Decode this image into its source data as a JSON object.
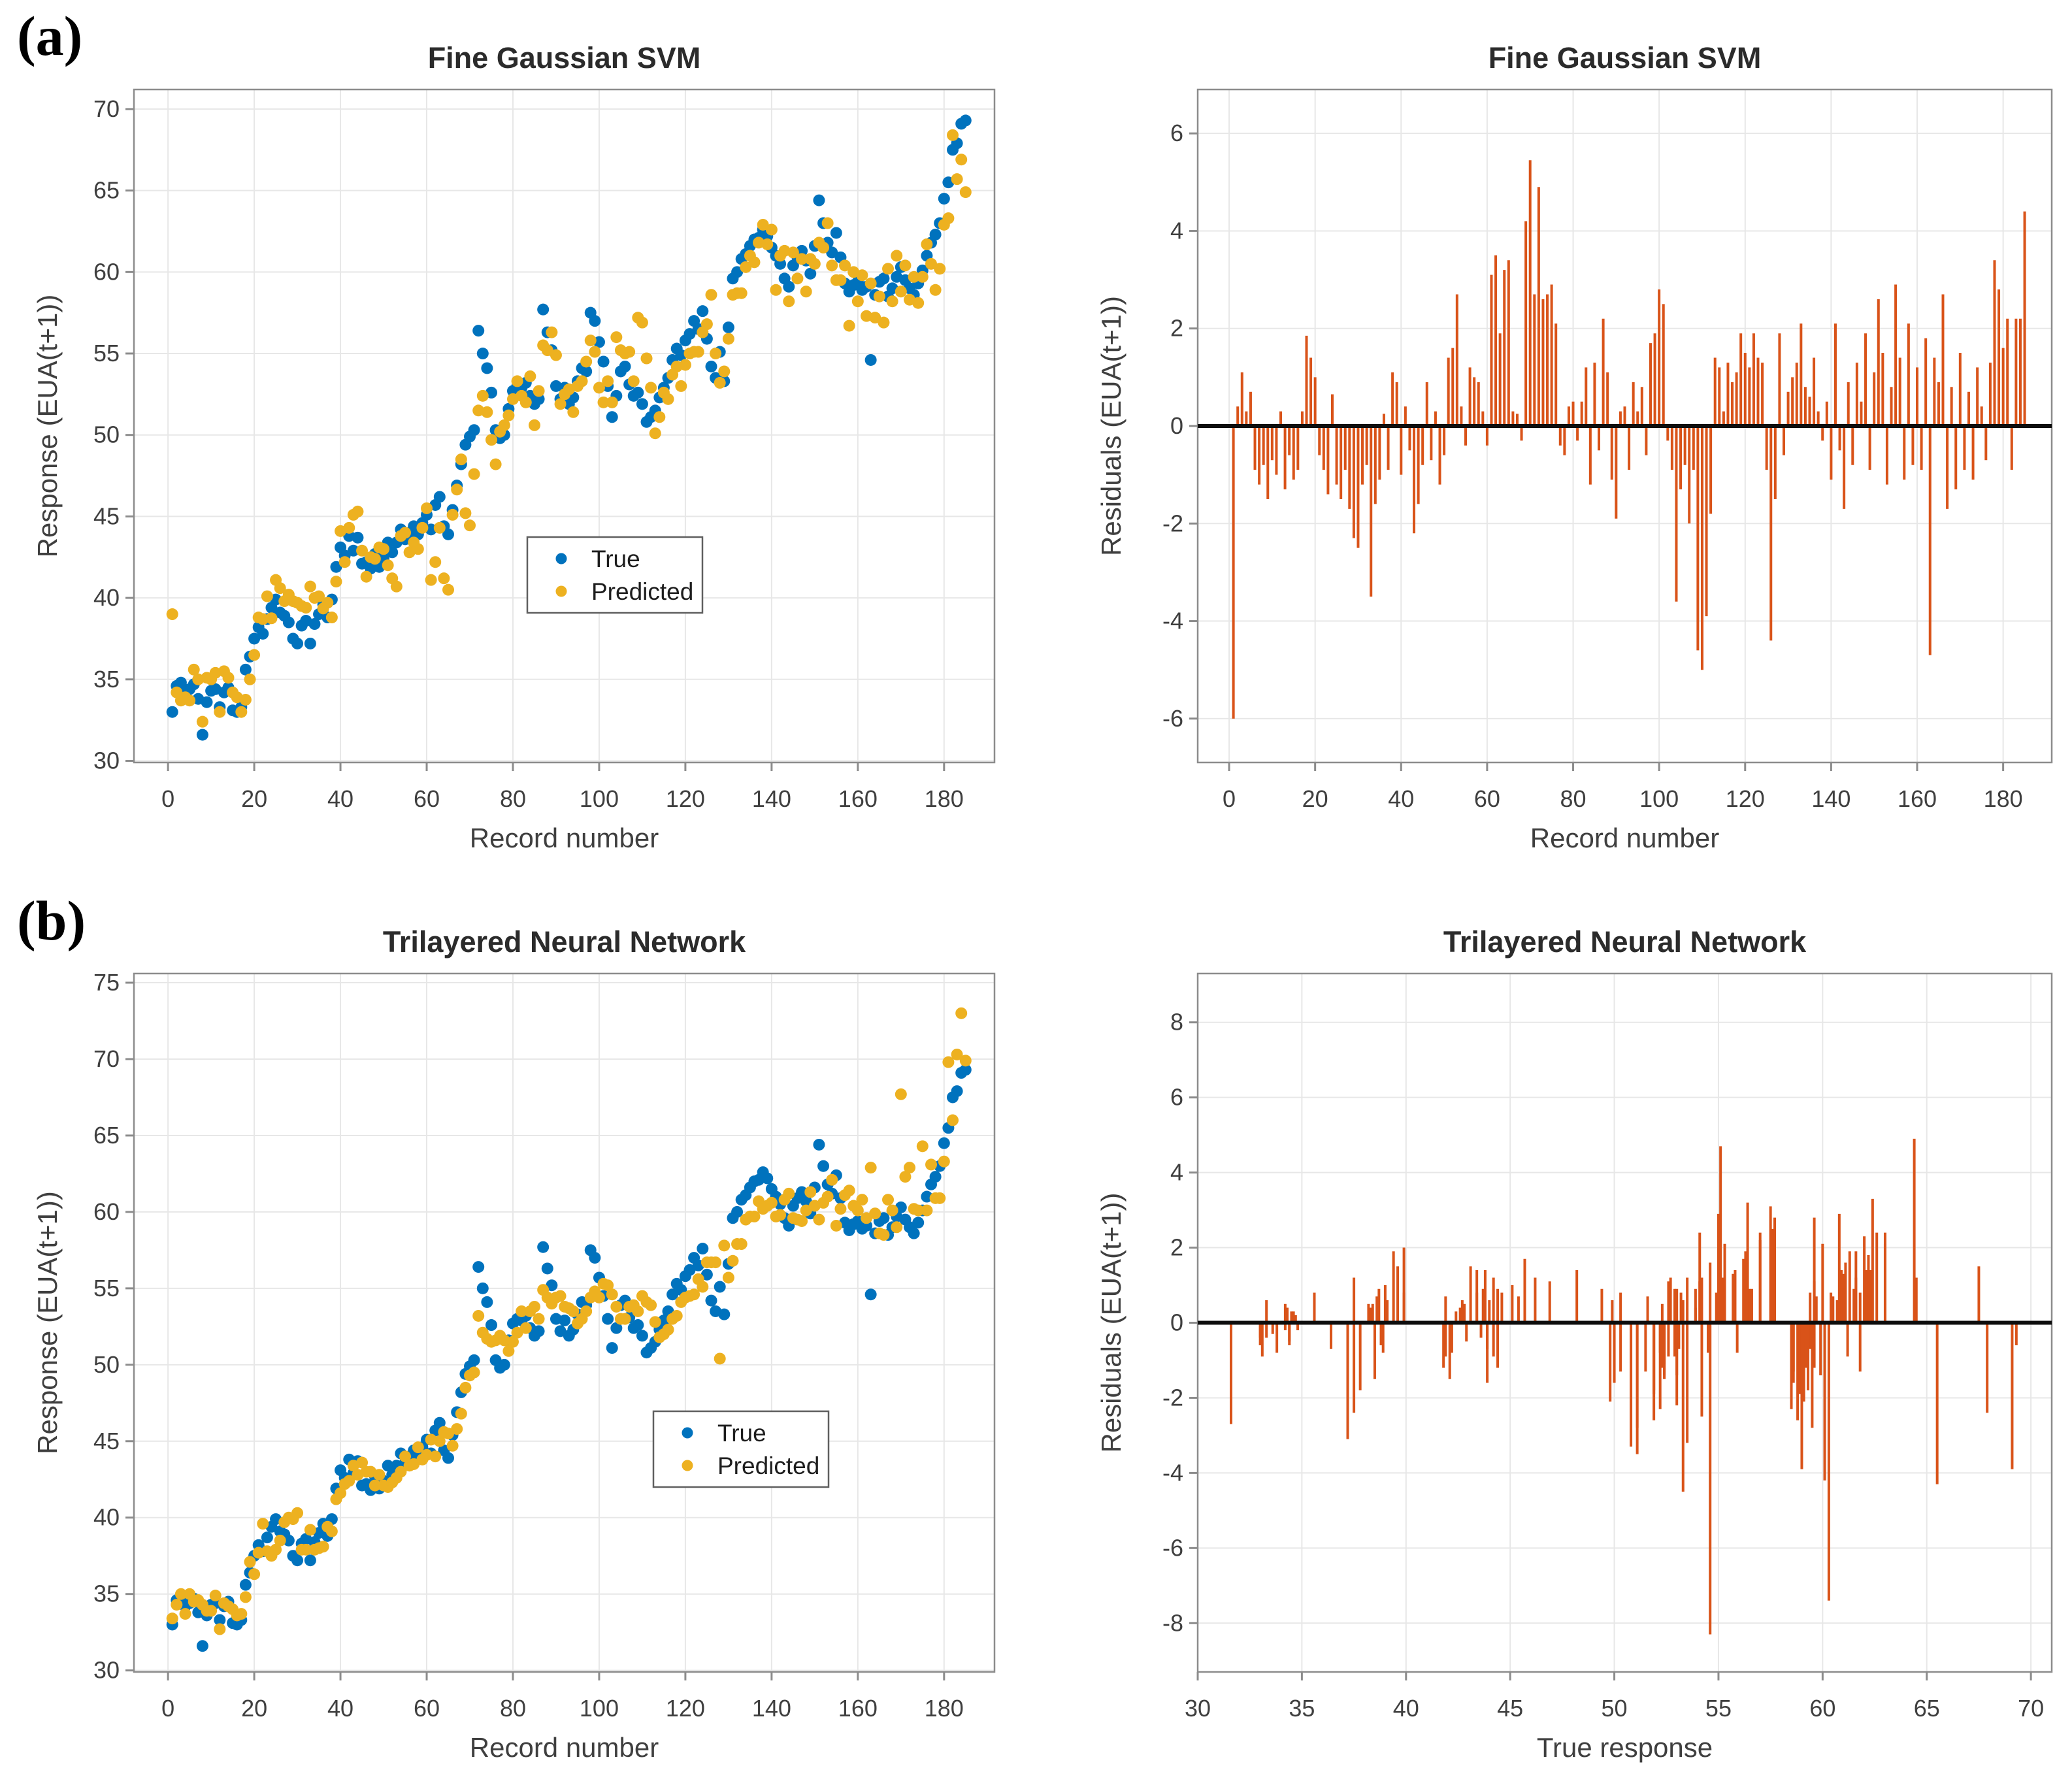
{
  "panel_labels": {
    "a": "(a)",
    "b": "(b)"
  },
  "legend": {
    "true_label": "True",
    "predicted_label": "Predicted"
  },
  "colors": {
    "true": "#0072BD",
    "predicted": "#EDB120",
    "residual": "#D95319",
    "baseline": "#0d0d0d",
    "grid": "#E7E7E7",
    "axis": "#8C8C8C",
    "tick_text": "#3F3F3F",
    "title_text": "#2B2B2B",
    "background": "#FFFFFF"
  },
  "chart_data": {
    "shared": {
      "record_start": 1,
      "n_records": 185,
      "note": "x = record number (1..185); predicted = true_response - residual",
      "true_response": [
        33.0,
        34.6,
        34.8,
        34.2,
        34.4,
        34.7,
        33.8,
        31.6,
        33.6,
        34.3,
        34.4,
        33.3,
        34.2,
        34.5,
        33.1,
        33.0,
        33.3,
        35.6,
        36.4,
        37.5,
        38.2,
        37.8,
        38.7,
        39.4,
        39.9,
        39.1,
        38.9,
        38.5,
        37.5,
        37.2,
        38.3,
        38.6,
        37.2,
        38.4,
        39.0,
        39.6,
        38.8,
        39.9,
        41.9,
        43.1,
        42.6,
        43.8,
        42.9,
        43.7,
        42.1,
        42.2,
        41.8,
        42.7,
        41.9,
        42.4,
        43.4,
        42.8,
        43.4,
        44.2,
        43.6,
        44.0,
        44.4,
        43.9,
        44.6,
        45.1,
        44.2,
        45.7,
        46.2,
        44.4,
        43.9,
        45.4,
        46.9,
        48.2,
        49.4,
        49.9,
        50.3,
        56.4,
        55.0,
        54.1,
        52.6,
        50.3,
        49.8,
        50.0,
        51.6,
        52.7,
        53.0,
        52.9,
        53.2,
        52.4,
        51.9,
        52.2,
        57.7,
        56.3,
        55.2,
        53.0,
        52.2,
        52.9,
        51.9,
        52.3,
        53.3,
        54.1,
        53.9,
        57.5,
        57.0,
        55.7,
        54.5,
        53.0,
        51.1,
        52.4,
        53.9,
        54.2,
        53.1,
        52.4,
        52.6,
        51.9,
        50.8,
        51.1,
        51.5,
        52.3,
        52.9,
        53.5,
        54.6,
        55.3,
        54.9,
        55.8,
        56.2,
        57.0,
        56.5,
        57.6,
        55.9,
        54.2,
        53.5,
        55.1,
        53.3,
        56.6,
        59.6,
        60.0,
        60.8,
        61.1,
        61.6,
        62.0,
        62.1,
        62.6,
        62.2,
        61.5,
        61.0,
        60.5,
        59.6,
        59.1,
        60.4,
        60.9,
        61.3,
        60.7,
        59.9,
        61.6,
        64.4,
        63.0,
        61.8,
        61.2,
        62.4,
        60.9,
        59.3,
        58.8,
        59.2,
        59.4,
        58.9,
        59.1,
        54.6,
        58.6,
        59.4,
        59.6,
        58.5,
        59.0,
        59.7,
        60.3,
        59.5,
        59.0,
        58.6,
        59.3,
        60.1,
        61.0,
        61.8,
        62.3,
        63.0,
        64.5,
        65.5,
        67.5,
        67.9,
        69.1,
        69.3
      ],
      "residuals_svm": [
        -6.0,
        0.4,
        1.1,
        0.3,
        0.7,
        -0.9,
        -1.2,
        -0.8,
        -1.5,
        -0.7,
        -1.0,
        0.3,
        -1.3,
        -0.6,
        -1.1,
        -0.9,
        0.3,
        1.85,
        1.4,
        1.0,
        -0.6,
        -0.9,
        -1.4,
        0.65,
        -1.2,
        -1.5,
        -0.9,
        -1.7,
        -2.3,
        -2.5,
        -1.2,
        -0.8,
        -3.5,
        -1.6,
        -1.1,
        0.25,
        -0.9,
        1.1,
        0.9,
        -1.0,
        0.4,
        -0.5,
        -2.2,
        -1.6,
        -0.8,
        0.9,
        -0.7,
        0.3,
        -1.2,
        -0.6,
        1.4,
        1.6,
        2.7,
        0.4,
        -0.4,
        1.2,
        1.0,
        0.9,
        0.3,
        -0.4,
        3.1,
        3.5,
        1.9,
        3.2,
        3.4,
        0.3,
        0.25,
        -0.3,
        4.2,
        5.45,
        2.7,
        4.9,
        2.6,
        2.7,
        2.9,
        2.1,
        -0.4,
        -0.6,
        0.4,
        0.5,
        -0.3,
        0.5,
        1.2,
        -1.2,
        1.3,
        -0.5,
        2.2,
        1.1,
        -1.1,
        -1.9,
        0.3,
        0.4,
        -0.9,
        0.9,
        0.3,
        0.8,
        -0.6,
        1.7,
        1.9,
        2.8,
        2.5,
        -0.3,
        -0.9,
        -3.6,
        -1.3,
        -0.8,
        -2.0,
        -0.9,
        -4.6,
        -5.0,
        -3.9,
        -1.8,
        1.4,
        1.2,
        0.3,
        1.3,
        0.9,
        1.1,
        1.9,
        1.5,
        1.2,
        1.9,
        1.4,
        1.3,
        -0.9,
        -4.4,
        -1.5,
        1.9,
        -0.6,
        0.7,
        1.0,
        1.3,
        2.1,
        0.8,
        0.6,
        1.4,
        0.3,
        -0.3,
        0.5,
        -1.1,
        2.1,
        -0.5,
        -1.7,
        0.9,
        -0.8,
        1.3,
        0.5,
        1.9,
        -0.9,
        1.1,
        2.6,
        1.5,
        -1.2,
        0.8,
        2.9,
        1.4,
        -1.1,
        2.1,
        -0.8,
        1.2,
        -0.9,
        1.8,
        -4.7,
        1.4,
        0.9,
        2.7,
        -1.7,
        0.8,
        -1.3,
        1.5,
        -0.9,
        0.7,
        -1.1,
        1.2,
        0.4,
        -0.7,
        1.3,
        3.4,
        2.8,
        1.6,
        2.2,
        -0.9,
        2.2,
        2.2,
        4.4
      ],
      "residuals_nn": [
        -0.4,
        0.3,
        -0.2,
        0.5,
        -0.6,
        0.2,
        -0.8,
        -2.7,
        -0.3,
        0.4,
        -0.5,
        0.6,
        -0.2,
        0.3,
        -0.9,
        -0.6,
        -0.4,
        0.8,
        -0.7,
        1.2,
        0.5,
        -1.8,
        0.9,
        1.9,
        2.0,
        0.6,
        -0.8,
        -1.5,
        -2.4,
        -3.1,
        0.4,
        0.7,
        -2.0,
        0.5,
        1.0,
        1.5,
        -0.6,
        0.8,
        0.7,
        1.5,
        0.4,
        1.4,
        -0.5,
        0.9,
        -1.5,
        -0.8,
        -1.2,
        0.6,
        -0.9,
        0.3,
        1.4,
        0.5,
        0.8,
        1.2,
        -0.4,
        0.6,
        0.9,
        -0.7,
        0.8,
        1.0,
        -0.9,
        1.7,
        1.2,
        -1.2,
        -1.6,
        0.7,
        1.1,
        1.4,
        0.9,
        0.6,
        0.8,
        3.2,
        2.9,
        2.4,
        1.1,
        -1.3,
        -2.1,
        -1.6,
        0.7,
        1.2,
        0.9,
        -0.6,
        0.8,
        -1.1,
        -1.9,
        -0.8,
        2.8,
        1.9,
        1.2,
        -1.4,
        -2.3,
        -0.9,
        -1.8,
        -1.2,
        0.6,
        1.1,
        0.4,
        3.1,
        2.2,
        1.3,
        -0.8,
        -2.2,
        -3.5,
        -1.4,
        0.9,
        1.2,
        -0.7,
        -1.5,
        -0.9,
        -2.6,
        -3.3,
        -2.8,
        -1.3,
        0.5,
        0.9,
        1.2,
        1.6,
        2.1,
        0.8,
        1.4,
        1.7,
        2.4,
        0.9,
        2.5,
        -0.8,
        -2.5,
        -3.2,
        4.7,
        -4.5,
        0.9,
        2.8,
        2.1,
        2.9,
        1.6,
        1.9,
        2.3,
        1.4,
        2.4,
        1.8,
        0.9,
        1.3,
        0.7,
        -1.2,
        -2.1,
        0.8,
        1.4,
        1.9,
        0.6,
        -1.4,
        1.2,
        4.9,
        2.4,
        0.8,
        -0.9,
        3.3,
        0.7,
        -1.8,
        -2.6,
        -1.2,
        -0.7,
        -1.9,
        -0.5,
        -8.3,
        -1.3,
        0.8,
        1.1,
        -2.3,
        -1.1,
        0.7,
        -7.4,
        -2.8,
        -3.9,
        -1.6,
        -0.8,
        -4.2,
        0.9,
        -1.3,
        1.4,
        2.1,
        1.2,
        -4.3,
        1.5,
        -2.4,
        -3.9,
        -0.6
      ]
    },
    "plots": [
      {
        "id": "a_scatter",
        "type": "scatter",
        "model": "svm",
        "title": "Fine Gaussian SVM",
        "xlabel": "Record number",
        "ylabel": "Response (EUA(t+1))",
        "xlim": [
          -7.9,
          191.7
        ],
        "ylim": [
          29.9,
          71.2
        ],
        "xticks": [
          0,
          20,
          40,
          60,
          80,
          100,
          120,
          140,
          160,
          180
        ],
        "yticks": [
          30,
          35,
          40,
          45,
          50,
          55,
          60,
          65,
          70
        ],
        "legend": true,
        "grid": true,
        "legend_position": "middle"
      },
      {
        "id": "a_resid",
        "type": "stem",
        "model": "svm",
        "x_mode": "record",
        "title": "Fine Gaussian SVM",
        "xlabel": "Record number",
        "ylabel": "Residuals (EUA(t+1))",
        "xlim": [
          -7.3,
          191.3
        ],
        "ylim": [
          -6.9,
          6.9
        ],
        "xticks": [
          0,
          20,
          40,
          60,
          80,
          100,
          120,
          140,
          160,
          180
        ],
        "yticks": [
          -6,
          -4,
          -2,
          0,
          2,
          4,
          6
        ],
        "legend": false,
        "grid": true
      },
      {
        "id": "b_scatter",
        "type": "scatter",
        "model": "nn",
        "title": "Trilayered Neural Network",
        "xlabel": "Record number",
        "ylabel": "Response (EUA(t+1))",
        "xlim": [
          -7.9,
          191.7
        ],
        "ylim": [
          29.9,
          75.6
        ],
        "xticks": [
          0,
          20,
          40,
          60,
          80,
          100,
          120,
          140,
          160,
          180
        ],
        "yticks": [
          30,
          35,
          40,
          45,
          50,
          55,
          60,
          65,
          70,
          75
        ],
        "legend": true,
        "grid": true,
        "legend_position": "middle"
      },
      {
        "id": "b_resid",
        "type": "stem",
        "model": "nn",
        "x_mode": "true_response",
        "title": "Trilayered Neural Network",
        "xlabel": "True response",
        "ylabel": "Residuals (EUA(t+1))",
        "xlim": [
          30,
          71
        ],
        "ylim": [
          -9.3,
          9.3
        ],
        "xticks": [
          30,
          35,
          40,
          45,
          50,
          55,
          60,
          65,
          70
        ],
        "yticks": [
          -8,
          -6,
          -4,
          -2,
          0,
          2,
          4,
          6,
          8
        ],
        "legend": false,
        "grid": true
      }
    ]
  }
}
